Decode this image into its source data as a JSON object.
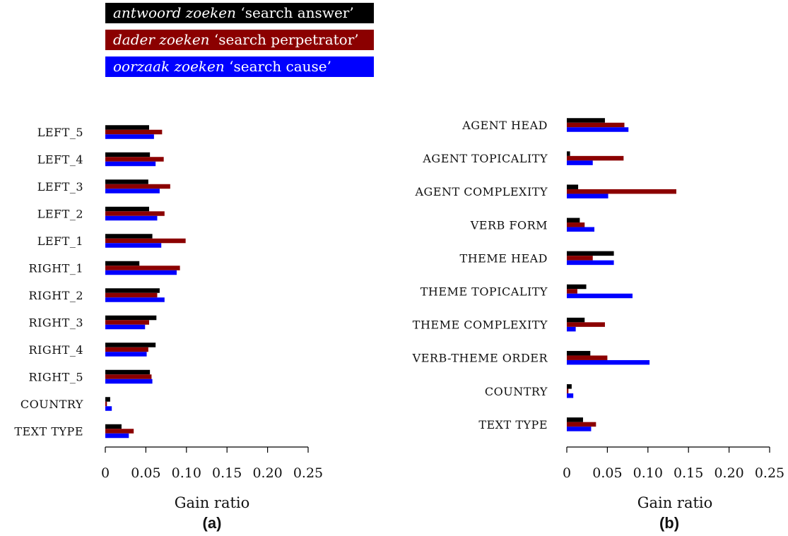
{
  "legend": [
    {
      "italic": "antwoord zoeken",
      "gloss": " ‘search answer’",
      "color": "#000000"
    },
    {
      "italic": "dader zoeken",
      "gloss": " ‘search perpetrator’",
      "color": "#8b0000"
    },
    {
      "italic": "oorzaak zoeken",
      "gloss": " ‘search cause’",
      "color": "#0000ff"
    }
  ],
  "chart_data": [
    {
      "type": "bar",
      "orientation": "horizontal",
      "panel_label": "(a)",
      "xlabel": "Gain ratio",
      "xlim": [
        0,
        0.25
      ],
      "xticks": [
        "0",
        "0.05",
        "0.10",
        "0.15",
        "0.20",
        "0.25"
      ],
      "categories": [
        "LEFT_5",
        "LEFT_4",
        "LEFT_3",
        "LEFT_2",
        "LEFT_1",
        "RIGHT_1",
        "RIGHT_2",
        "RIGHT_3",
        "RIGHT_4",
        "RIGHT_5",
        "COUNTRY",
        "TEXT TYPE"
      ],
      "series": [
        {
          "name": "antwoord zoeken ‘search answer’",
          "color": "#000000",
          "values": [
            0.054,
            0.055,
            0.053,
            0.054,
            0.058,
            0.042,
            0.067,
            0.063,
            0.062,
            0.055,
            0.006,
            0.02
          ]
        },
        {
          "name": "dader zoeken ‘search perpetrator’",
          "color": "#8b0000",
          "values": [
            0.07,
            0.072,
            0.08,
            0.073,
            0.099,
            0.092,
            0.064,
            0.054,
            0.053,
            0.057,
            0.002,
            0.035
          ]
        },
        {
          "name": "oorzaak zoeken ‘search cause’",
          "color": "#0000ff",
          "values": [
            0.06,
            0.062,
            0.067,
            0.064,
            0.069,
            0.088,
            0.073,
            0.049,
            0.051,
            0.058,
            0.008,
            0.029
          ]
        }
      ]
    },
    {
      "type": "bar",
      "orientation": "horizontal",
      "panel_label": "(b)",
      "xlabel": "Gain ratio",
      "xlim": [
        0,
        0.25
      ],
      "xticks": [
        "0",
        "0.05",
        "0.10",
        "0.15",
        "0.20",
        "0.25"
      ],
      "categories": [
        "AGENT HEAD",
        "AGENT TOPICALITY",
        "AGENT COMPLEXITY",
        "VERB FORM",
        "THEME HEAD",
        "THEME TOPICALITY",
        "THEME COMPLEXITY",
        "VERB-THEME ORDER",
        "COUNTRY",
        "TEXT TYPE"
      ],
      "series": [
        {
          "name": "antwoord zoeken ‘search answer’",
          "color": "#000000",
          "values": [
            0.047,
            0.004,
            0.014,
            0.016,
            0.058,
            0.024,
            0.022,
            0.029,
            0.006,
            0.02
          ]
        },
        {
          "name": "dader zoeken ‘search perpetrator’",
          "color": "#8b0000",
          "values": [
            0.071,
            0.07,
            0.135,
            0.022,
            0.032,
            0.013,
            0.047,
            0.05,
            0.002,
            0.036
          ]
        },
        {
          "name": "oorzaak zoeken ‘search cause’",
          "color": "#0000ff",
          "values": [
            0.076,
            0.032,
            0.051,
            0.034,
            0.058,
            0.081,
            0.011,
            0.102,
            0.008,
            0.03
          ]
        }
      ]
    }
  ]
}
